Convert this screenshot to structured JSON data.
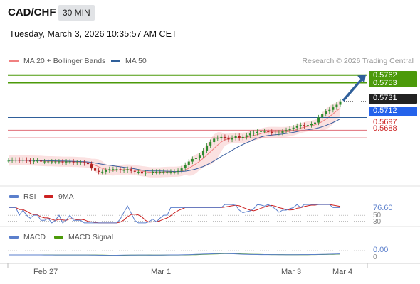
{
  "header": {
    "symbol": "CAD/CHF",
    "interval": "30 MIN",
    "datetime": "Tuesday, March 3, 2026 10:35:57 AM CET"
  },
  "legend": {
    "ma20_label": "MA 20 + Bollinger Bands",
    "ma50_label": "MA 50",
    "credit": "Research © 2026 Trading Central"
  },
  "colors": {
    "resistance": "#4c9a0a",
    "support": "#e06f7a",
    "pivot": "#2f5f9a",
    "current": "#222222",
    "candle_up": "#2e8b2e",
    "candle_down": "#b02020",
    "ma20": "#f08080",
    "ma50": "#3a5fa0",
    "bollinger_fill": "#fadcdc",
    "arrow": "#2f5f9a",
    "rsi": "#5b7fcc",
    "rsi_ma": "#cc2222",
    "macd": "#5b7fcc",
    "macd_signal": "#4c9a0a"
  },
  "levels": {
    "resistance_1": "0.5762",
    "resistance_2": "0.5753",
    "current_price": "0.5731",
    "pivot": "0.5712",
    "support_1": "0.5697",
    "support_2": "0.5688"
  },
  "x_axis": {
    "labels": [
      "Feb 27",
      "Mar 1",
      "Mar 3",
      "Mar 4"
    ]
  },
  "rsi_panel": {
    "rsi_label": "RSI",
    "ma_label": "9MA",
    "value": "76.60",
    "level_hi": "50",
    "level_lo": "30"
  },
  "macd_panel": {
    "macd_label": "MACD",
    "signal_label": "MACD Signal",
    "value": "0.00",
    "zero": "0"
  },
  "chart_data": {
    "type": "candlestick",
    "symbol": "CAD/CHF",
    "interval": "30 MIN",
    "y_range": [
      0.5637,
      0.5771
    ],
    "x_labels": [
      "Feb 27",
      "Mar 1",
      "Mar 3",
      "Mar 4"
    ],
    "close_path": [
      0.5661,
      0.5662,
      0.5662,
      0.5661,
      0.5662,
      0.5661,
      0.566,
      0.5661,
      0.5661,
      0.566,
      0.566,
      0.566,
      0.566,
      0.566,
      0.566,
      0.5659,
      0.566,
      0.566,
      0.5659,
      0.5659,
      0.5659,
      0.5658,
      0.5657,
      0.5652,
      0.5649,
      0.5648,
      0.5648,
      0.565,
      0.5651,
      0.5651,
      0.5651,
      0.565,
      0.565,
      0.5651,
      0.5649,
      0.5648,
      0.5648,
      0.5646,
      0.5647,
      0.5647,
      0.5648,
      0.5648,
      0.5648,
      0.5648,
      0.5648,
      0.5648,
      0.5648,
      0.5649,
      0.5652,
      0.5656,
      0.566,
      0.5663,
      0.5664,
      0.5667,
      0.5673,
      0.5679,
      0.5683,
      0.5687,
      0.5688,
      0.5689,
      0.5688,
      0.5686,
      0.5688,
      0.569,
      0.5688,
      0.5689,
      0.5691,
      0.5693,
      0.5694,
      0.5695,
      0.5696,
      0.5696,
      0.5695,
      0.5694,
      0.5694,
      0.5694,
      0.5696,
      0.5697,
      0.5699,
      0.57,
      0.5702,
      0.5703,
      0.5702,
      0.5703,
      0.5704,
      0.5706,
      0.5712,
      0.5716,
      0.5719,
      0.5721,
      0.5724,
      0.5727,
      0.5731
    ],
    "indicators": [
      "MA 20 + Bollinger Bands",
      "MA 50"
    ],
    "levels": {
      "resistance": [
        0.5762,
        0.5753
      ],
      "current": 0.5731,
      "pivot": 0.5712,
      "support": [
        0.5697,
        0.5688
      ]
    },
    "subpanels": [
      {
        "name": "RSI",
        "ma": "9MA",
        "value": 76.6,
        "levels": [
          50,
          30
        ]
      },
      {
        "name": "MACD",
        "signal": "MACD Signal",
        "value": 0.0,
        "zero": 0
      }
    ]
  }
}
